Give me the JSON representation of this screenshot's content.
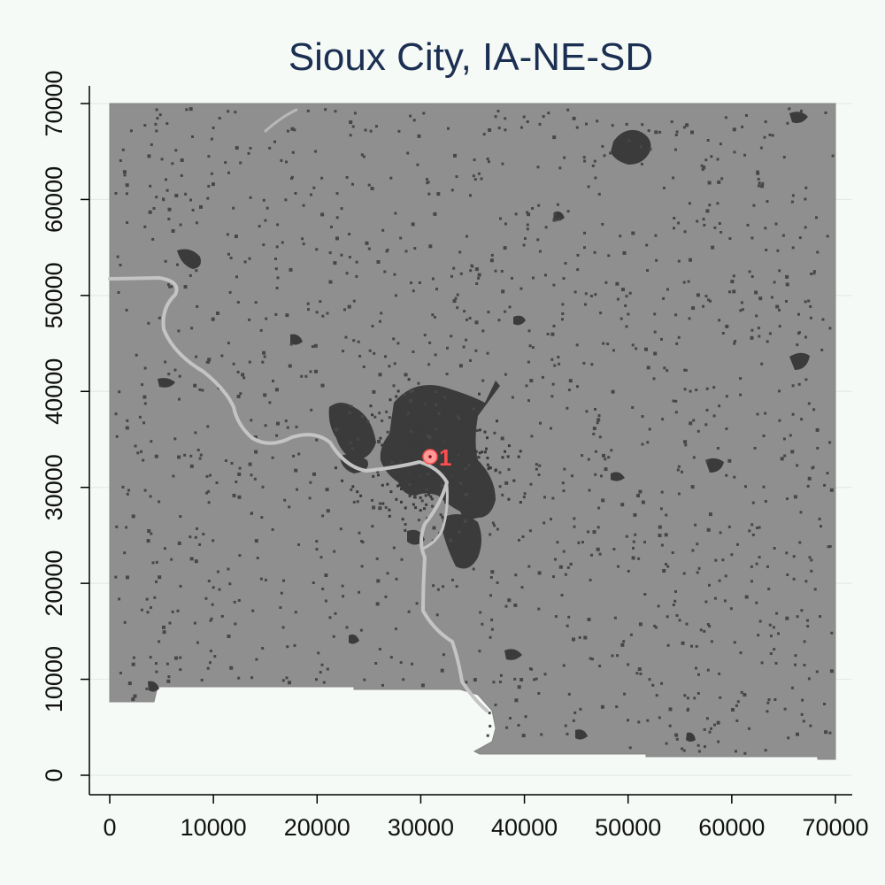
{
  "chart_data": {
    "type": "map",
    "title": "Sioux City, IA-NE-SD",
    "xlabel": "",
    "ylabel": "",
    "xlim": [
      0,
      70000
    ],
    "ylim": [
      0,
      70000
    ],
    "x_ticks": [
      0,
      10000,
      20000,
      30000,
      40000,
      50000,
      60000,
      70000
    ],
    "y_ticks": [
      0,
      10000,
      20000,
      30000,
      40000,
      50000,
      60000,
      70000
    ],
    "x_tick_labels": [
      "0",
      "10000",
      "20000",
      "30000",
      "40000",
      "50000",
      "60000",
      "70000"
    ],
    "y_tick_labels": [
      "0",
      "10000",
      "20000",
      "30000",
      "40000",
      "50000",
      "60000",
      "70000"
    ],
    "grid": true,
    "legend": "none",
    "colors": {
      "background": "#f6faf7",
      "land": "#8f8f8f",
      "urban": "#3b3b3b",
      "river": "#c4c4c4",
      "marker": "#ff4d4d",
      "marker_fill": "#ff9a9a",
      "title": "#1b2f52"
    },
    "markers": [
      {
        "label": "1",
        "x": 30900,
        "y": 33200
      }
    ]
  }
}
